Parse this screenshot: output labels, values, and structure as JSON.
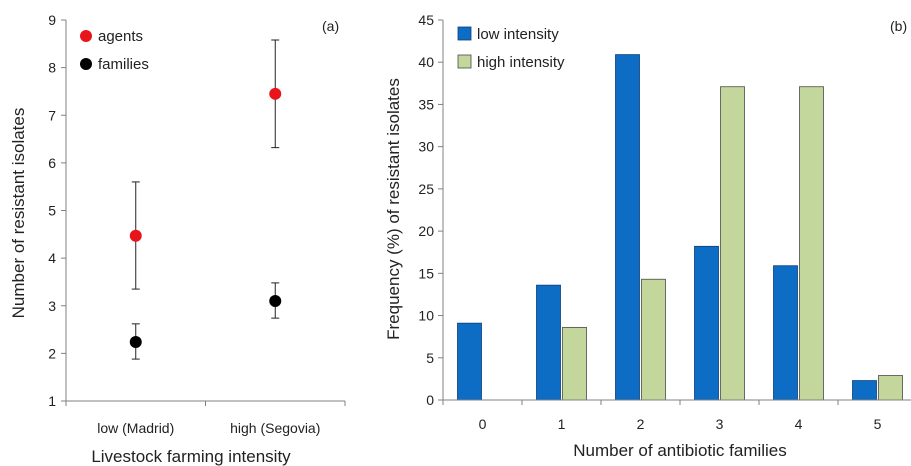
{
  "chart_data": [
    {
      "panel_label": "(a)",
      "type": "scatter",
      "xlabel": "Livestock farming intensity",
      "ylabel": "Number of resistant isolates",
      "categories": [
        "low (Madrid)",
        "high (Segovia)"
      ],
      "ylim": [
        1,
        9
      ],
      "yticks": [
        "1",
        "2",
        "3",
        "4",
        "5",
        "6",
        "7",
        "8",
        "9"
      ],
      "grid": false,
      "legend_position": "top-left",
      "series": [
        {
          "name": "agents",
          "color": "#e8141c",
          "values": [
            4.47,
            7.45
          ],
          "err_low": [
            3.35,
            6.32
          ],
          "err_high": [
            5.6,
            8.58
          ]
        },
        {
          "name": "families",
          "color": "#000000",
          "values": [
            2.24,
            3.1
          ],
          "err_low": [
            1.88,
            2.74
          ],
          "err_high": [
            2.62,
            3.48
          ]
        }
      ]
    },
    {
      "panel_label": "(b)",
      "type": "bar",
      "xlabel": "Number of antibiotic families",
      "ylabel": "Frequency (%) of resistant isolates",
      "categories": [
        "0",
        "1",
        "2",
        "3",
        "4",
        "5"
      ],
      "ylim": [
        0,
        45
      ],
      "yticks": [
        "0",
        "5",
        "10",
        "15",
        "20",
        "25",
        "30",
        "35",
        "40",
        "45"
      ],
      "grid": false,
      "legend_position": "top-left",
      "series": [
        {
          "name": "low intensity",
          "color": "#0d6cc4",
          "stroke": "#0a3f78",
          "values": [
            9.1,
            13.6,
            40.9,
            18.2,
            15.9,
            2.3
          ]
        },
        {
          "name": "high intensity",
          "color": "#c3d69b",
          "stroke": "#4a4a4a",
          "values": [
            0,
            8.6,
            14.3,
            37.1,
            37.1,
            2.9
          ]
        }
      ]
    }
  ]
}
